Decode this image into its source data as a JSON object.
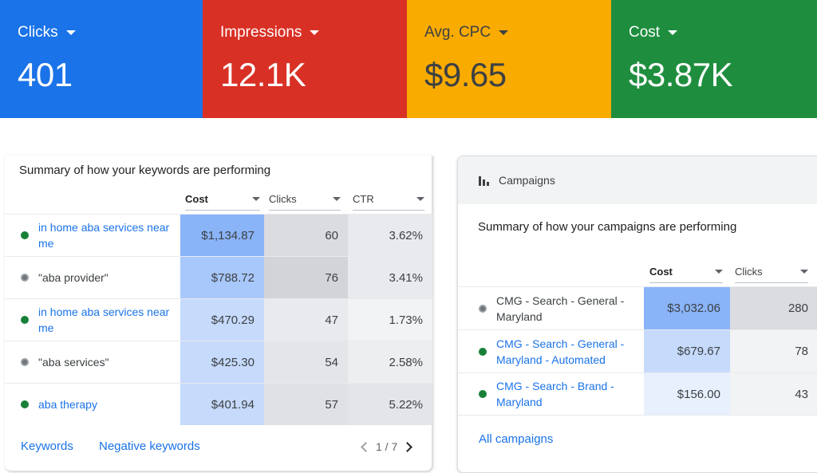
{
  "kpis": [
    {
      "label": "Clicks",
      "value": "401"
    },
    {
      "label": "Impressions",
      "value": "12.1K"
    },
    {
      "label": "Avg. CPC",
      "value": "$9.65"
    },
    {
      "label": "Cost",
      "value": "$3.87K"
    }
  ],
  "keywords_card": {
    "title": "Summary of how your keywords are performing",
    "columns": [
      "Cost",
      "Clicks",
      "CTR"
    ],
    "rows": [
      {
        "name": "in home aba services near me",
        "status": "enabled",
        "cost": "$1,134.87",
        "clicks": "60",
        "ctr": "3.62%"
      },
      {
        "name": "\"aba provider\"",
        "status": "paused",
        "cost": "$788.72",
        "clicks": "76",
        "ctr": "3.41%"
      },
      {
        "name": "in home aba services near me",
        "status": "enabled",
        "cost": "$470.29",
        "clicks": "47",
        "ctr": "1.73%"
      },
      {
        "name": "\"aba services\"",
        "status": "paused",
        "cost": "$425.30",
        "clicks": "54",
        "ctr": "2.58%"
      },
      {
        "name": "aba therapy",
        "status": "enabled",
        "cost": "$401.94",
        "clicks": "57",
        "ctr": "5.22%"
      }
    ],
    "footer": {
      "keywords_link": "Keywords",
      "negative_link": "Negative keywords",
      "page": "1 / 7"
    }
  },
  "campaigns_card": {
    "header": "Campaigns",
    "title": "Summary of how your campaigns are performing",
    "columns": [
      "Cost",
      "Clicks"
    ],
    "rows": [
      {
        "name": "CMG - Search - General - Maryland",
        "status": "paused",
        "cost": "$3,032.06",
        "clicks": "280"
      },
      {
        "name": "CMG - Search - General - Maryland - Automated",
        "status": "enabled",
        "cost": "$679.67",
        "clicks": "78"
      },
      {
        "name": "CMG - Search - Brand - Maryland",
        "status": "enabled",
        "cost": "$156.00",
        "clicks": "43"
      }
    ],
    "footer_link": "All campaigns"
  },
  "colors": {
    "clicks": "#1a73e8",
    "impressions": "#d93025",
    "avg_cpc": "#f9ab00",
    "cost": "#1e8e3e",
    "heat_1": "#8ab4f8",
    "heat_2": "#aecbfa",
    "heat_3": "#c6dafc",
    "heat_4": "#d2e3fc",
    "heat_5": "#e8f0fe",
    "gray_1": "#dadce0",
    "gray_2": "#e8eaed",
    "gray_3": "#f1f3f4"
  },
  "icons": {
    "sort": "caret-down-icon",
    "campaigns": "bar-chart-icon",
    "status_enabled": "green-dot-icon",
    "status_paused": "paused-dot-icon"
  }
}
